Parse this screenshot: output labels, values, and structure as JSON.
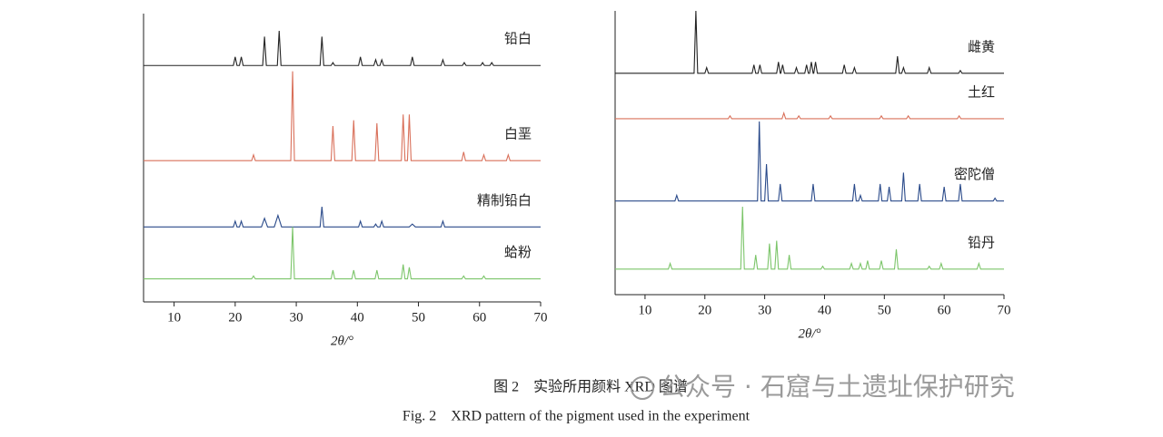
{
  "chart_data": [
    {
      "type": "line",
      "x_label": "2θ/°",
      "xlim": [
        5,
        70
      ],
      "xticks": [
        10,
        20,
        30,
        40,
        50,
        60,
        70
      ],
      "ylim": [
        0,
        100
      ],
      "series": [
        {
          "name": "铅白",
          "color": "#222222",
          "x": [
            5,
            19.7,
            20,
            20.3,
            20.7,
            21,
            21.3,
            24.5,
            24.8,
            25.1,
            26.9,
            27.2,
            27.5,
            33.9,
            34.2,
            34.5,
            35.7,
            36,
            36.3,
            40.2,
            40.5,
            40.8,
            42.7,
            43,
            43.3,
            43.7,
            44,
            44.3,
            48.7,
            49,
            49.3,
            53.7,
            54,
            54.3,
            57.2,
            57.5,
            57.8,
            60.2,
            60.5,
            60.8,
            61.7,
            62,
            62.3,
            70
          ],
          "values": [
            82,
            82,
            85,
            82,
            82,
            85,
            82,
            82,
            92,
            82,
            82,
            94,
            82,
            82,
            92,
            82,
            82,
            83,
            82,
            82,
            85,
            82,
            82,
            84,
            82,
            82,
            84,
            82,
            82,
            85,
            82,
            82,
            84,
            82,
            82,
            83,
            82,
            82,
            83,
            82,
            82,
            83,
            82,
            82
          ]
        },
        {
          "name": "白垩",
          "color": "#d9705a",
          "x": [
            5,
            22.7,
            23,
            23.3,
            29.1,
            29.4,
            29.7,
            35.7,
            36,
            36.3,
            39.1,
            39.4,
            39.7,
            42.9,
            43.2,
            43.5,
            47.2,
            47.5,
            47.8,
            48.2,
            48.5,
            48.8,
            57.1,
            57.4,
            57.7,
            60.4,
            60.7,
            61,
            64.4,
            64.7,
            65,
            70
          ],
          "values": [
            49,
            49,
            51,
            49,
            49,
            80,
            49,
            49,
            61,
            49,
            49,
            63,
            49,
            49,
            62,
            49,
            49,
            65,
            49,
            49,
            65,
            49,
            49,
            52,
            49,
            49,
            51,
            49,
            49,
            51,
            49,
            49
          ]
        },
        {
          "name": "精制铅白",
          "color": "#2a4a8a",
          "x": [
            5,
            19.7,
            20,
            20.3,
            20.7,
            21,
            21.3,
            24.3,
            24.8,
            25.3,
            26.4,
            27,
            27.6,
            33.9,
            34.2,
            34.5,
            40.2,
            40.5,
            40.8,
            42.7,
            43,
            43.3,
            43.7,
            44,
            44.3,
            48.5,
            49,
            49.5,
            53.7,
            54,
            54.3,
            70
          ],
          "values": [
            26,
            26,
            28,
            26,
            26,
            28,
            26,
            26,
            29,
            26,
            26,
            30,
            26,
            26,
            33,
            26,
            26,
            28,
            26,
            26,
            27,
            26,
            26,
            28,
            26,
            26,
            27,
            26,
            26,
            28,
            26,
            26
          ]
        },
        {
          "name": "蛤粉",
          "color": "#7cc56a",
          "x": [
            5,
            22.7,
            23,
            23.3,
            29.1,
            29.4,
            29.7,
            35.7,
            36,
            36.3,
            39.1,
            39.4,
            39.7,
            42.9,
            43.2,
            43.5,
            47.2,
            47.5,
            47.8,
            48.2,
            48.5,
            48.8,
            57.1,
            57.4,
            57.7,
            60.4,
            60.7,
            61,
            70
          ],
          "values": [
            8,
            8,
            9,
            8,
            8,
            26,
            8,
            8,
            11,
            8,
            8,
            11,
            8,
            8,
            11,
            8,
            8,
            13,
            8,
            8,
            12,
            8,
            8,
            9,
            8,
            8,
            9,
            8,
            8
          ]
        }
      ]
    },
    {
      "type": "line",
      "x_label": "2θ/°",
      "xlim": [
        5,
        70
      ],
      "xticks": [
        10,
        20,
        30,
        40,
        50,
        60,
        70
      ],
      "ylim": [
        0,
        100
      ],
      "series": [
        {
          "name": "雌黄",
          "color": "#222222",
          "x": [
            5,
            18.2,
            18.5,
            18.8,
            20,
            20.3,
            20.6,
            27.9,
            28.2,
            28.5,
            28.9,
            29.2,
            29.5,
            32,
            32.3,
            32.6,
            32.7,
            33,
            33.3,
            35,
            35.3,
            35.6,
            36.7,
            37,
            37.3,
            37.5,
            37.8,
            38.1,
            38.2,
            38.5,
            38.8,
            43,
            43.3,
            43.6,
            44.7,
            45,
            45.3,
            51.9,
            52.2,
            52.5,
            52.9,
            53.2,
            53.5,
            57.2,
            57.5,
            57.8,
            62.4,
            62.7,
            63,
            70
          ],
          "values": [
            78,
            78,
            100,
            78,
            78,
            80,
            78,
            78,
            81,
            78,
            78,
            81,
            78,
            78,
            82,
            78,
            78,
            81,
            78,
            78,
            80,
            78,
            78,
            81,
            78,
            78,
            82,
            78,
            78,
            82,
            78,
            78,
            81,
            78,
            78,
            80,
            78,
            78,
            84,
            78,
            78,
            80,
            78,
            78,
            80,
            78,
            78,
            79,
            78,
            78
          ]
        },
        {
          "name": "土红",
          "color": "#d9705a",
          "x": [
            5,
            23.9,
            24.2,
            24.5,
            32.9,
            33.2,
            33.5,
            35.4,
            35.7,
            36,
            40.7,
            41,
            41.3,
            49.2,
            49.5,
            49.8,
            53.7,
            54,
            54.3,
            62.2,
            62.5,
            62.8,
            70
          ],
          "values": [
            62,
            62,
            63,
            62,
            62,
            64,
            62,
            62,
            63,
            62,
            62,
            63,
            62,
            62,
            63,
            62,
            62,
            63,
            62,
            62,
            63,
            62,
            62
          ]
        },
        {
          "name": "密陀僧",
          "color": "#2a4a8a",
          "x": [
            5,
            15,
            15.3,
            15.6,
            28.8,
            29.1,
            29.4,
            30,
            30.3,
            30.6,
            32.3,
            32.6,
            32.9,
            37.8,
            38.1,
            38.4,
            44.7,
            45,
            45.3,
            45.7,
            46,
            46.3,
            49,
            49.3,
            49.6,
            50.5,
            50.8,
            51.1,
            52.9,
            53.2,
            53.5,
            55.6,
            55.9,
            56.2,
            59.7,
            60,
            60.3,
            62.4,
            62.7,
            63,
            68.2,
            68.5,
            68.8,
            70
          ],
          "values": [
            33,
            33,
            35,
            33,
            33,
            61,
            33,
            33,
            46,
            33,
            33,
            39,
            33,
            33,
            39,
            33,
            33,
            39,
            33,
            33,
            35,
            33,
            33,
            39,
            33,
            33,
            38,
            33,
            33,
            43,
            33,
            33,
            39,
            33,
            33,
            38,
            33,
            33,
            39,
            33,
            33,
            34,
            33,
            33
          ]
        },
        {
          "name": "铅丹",
          "color": "#7cc56a",
          "x": [
            5,
            13.9,
            14.2,
            14.5,
            26,
            26.3,
            26.6,
            28.2,
            28.5,
            28.8,
            30.5,
            30.8,
            31.1,
            31.7,
            32,
            32.3,
            33.8,
            34.1,
            34.4,
            39.4,
            39.7,
            40,
            44.2,
            44.5,
            44.8,
            45.7,
            46,
            46.3,
            46.9,
            47.2,
            47.5,
            49.2,
            49.5,
            49.8,
            51.7,
            52,
            52.3,
            57.2,
            57.5,
            57.8,
            59.2,
            59.5,
            59.8,
            65.5,
            65.8,
            66.1,
            70
          ],
          "values": [
            9,
            9,
            11,
            9,
            9,
            31,
            9,
            9,
            14,
            9,
            9,
            18,
            9,
            9,
            19,
            9,
            9,
            14,
            9,
            9,
            10,
            9,
            9,
            11,
            9,
            9,
            11,
            9,
            9,
            12,
            9,
            9,
            12,
            9,
            9,
            16,
            9,
            9,
            10,
            9,
            9,
            11,
            9,
            9,
            11,
            9,
            9
          ]
        }
      ]
    }
  ],
  "caption": {
    "title_zh": "图 2　实验所用颜料 XRD 图谱",
    "title_en": "Fig. 2　XRD pattern of the pigment used in the experiment",
    "watermark": "公众号 · 石窟与土遗址保护研究"
  }
}
